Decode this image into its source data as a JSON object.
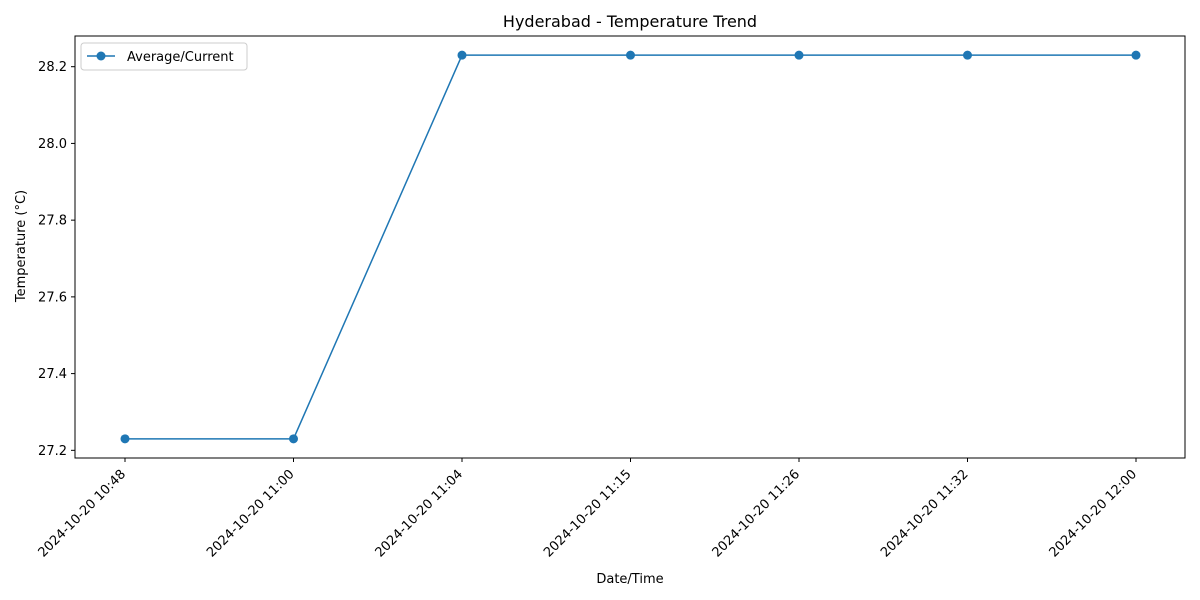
{
  "chart_data": {
    "type": "line",
    "title": "Hyderabad - Temperature Trend",
    "xlabel": "Date/Time",
    "ylabel": "Temperature (°C)",
    "categories": [
      "2024-10-20 10:48",
      "2024-10-20 11:00",
      "2024-10-20 11:04",
      "2024-10-20 11:15",
      "2024-10-20 11:26",
      "2024-10-20 11:32",
      "2024-10-20 12:00"
    ],
    "series": [
      {
        "name": "Average/Current",
        "color": "#1f77b4",
        "values": [
          27.23,
          27.23,
          28.23,
          28.23,
          28.23,
          28.23,
          28.23
        ]
      }
    ],
    "yticks": [
      "27.2",
      "27.4",
      "27.6",
      "27.8",
      "28.0",
      "28.2"
    ],
    "ylim": [
      27.18,
      28.28
    ],
    "legend_position": "upper-left",
    "grid": false,
    "marker": "circle"
  }
}
